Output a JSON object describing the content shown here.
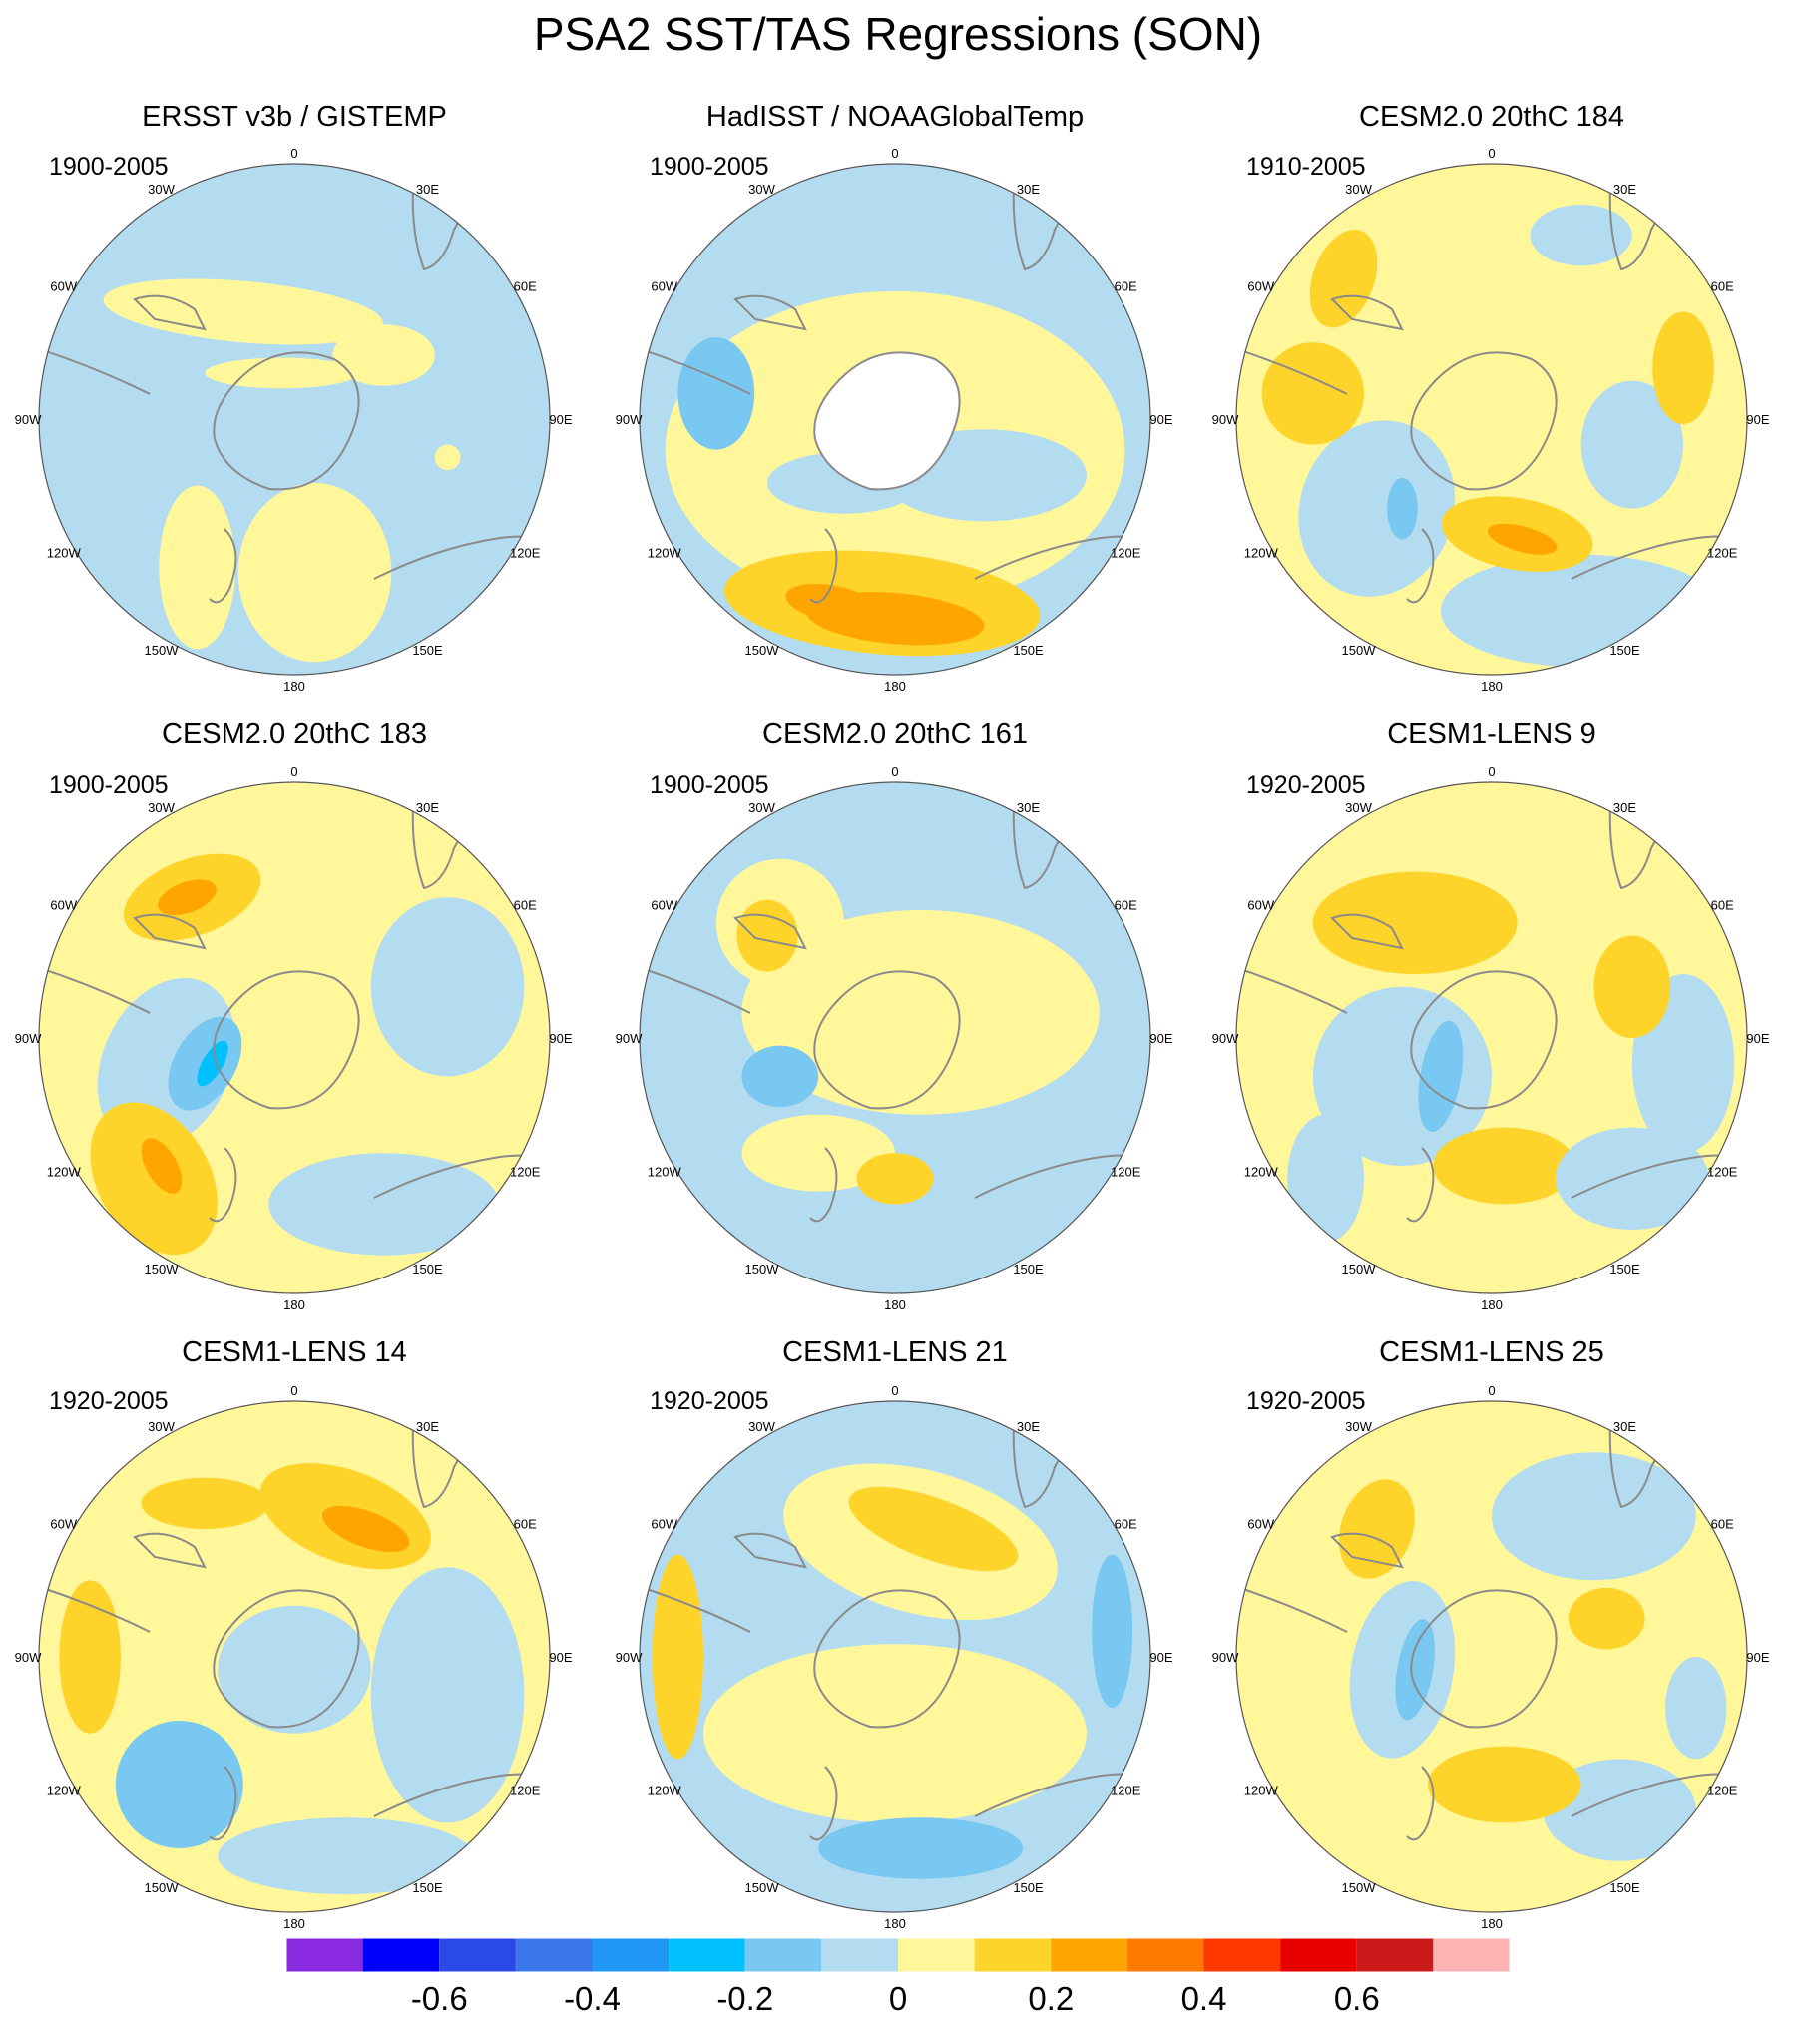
{
  "title": "PSA2 SST/TAS Regressions (SON)",
  "longitude_labels": [
    "0",
    "30E",
    "60E",
    "90E",
    "120E",
    "150E",
    "180",
    "150W",
    "120W",
    "90W",
    "60W",
    "30W"
  ],
  "colors": {
    "land_missing": "#ffffff",
    "coast": "#8a8a8a",
    "border": "#555555"
  },
  "panels": [
    {
      "title": "ERSST v3b / GISTEMP",
      "period": "1900-2005",
      "pattern": "ersst"
    },
    {
      "title": "HadISST / NOAAGlobalTemp",
      "period": "1900-2005",
      "pattern": "hadisst"
    },
    {
      "title": "CESM2.0 20thC 184",
      "period": "1910-2005",
      "pattern": "c184"
    },
    {
      "title": "CESM2.0 20thC 183",
      "period": "1900-2005",
      "pattern": "c183"
    },
    {
      "title": "CESM2.0 20thC 161",
      "period": "1900-2005",
      "pattern": "c161"
    },
    {
      "title": "CESM1-LENS 9",
      "period": "1920-2005",
      "pattern": "l9"
    },
    {
      "title": "CESM1-LENS 14",
      "period": "1920-2005",
      "pattern": "l14"
    },
    {
      "title": "CESM1-LENS 21",
      "period": "1920-2005",
      "pattern": "l21"
    },
    {
      "title": "CESM1-LENS 25",
      "period": "1920-2005",
      "pattern": "l25"
    }
  ],
  "colorbar": {
    "colors": [
      "#8a2be2",
      "#0000ff",
      "#2b48e8",
      "#3a78ea",
      "#2197f5",
      "#00c0ff",
      "#78c8f2",
      "#b4dcf0",
      "#fff79a",
      "#ffd42a",
      "#ffa500",
      "#ff7a00",
      "#ff3800",
      "#e60000",
      "#cc1a1a",
      "#ffb4b4"
    ],
    "labels": [
      "-0.6",
      "-0.4",
      "-0.2",
      "0",
      "0.2",
      "0.4",
      "0.6"
    ]
  }
}
